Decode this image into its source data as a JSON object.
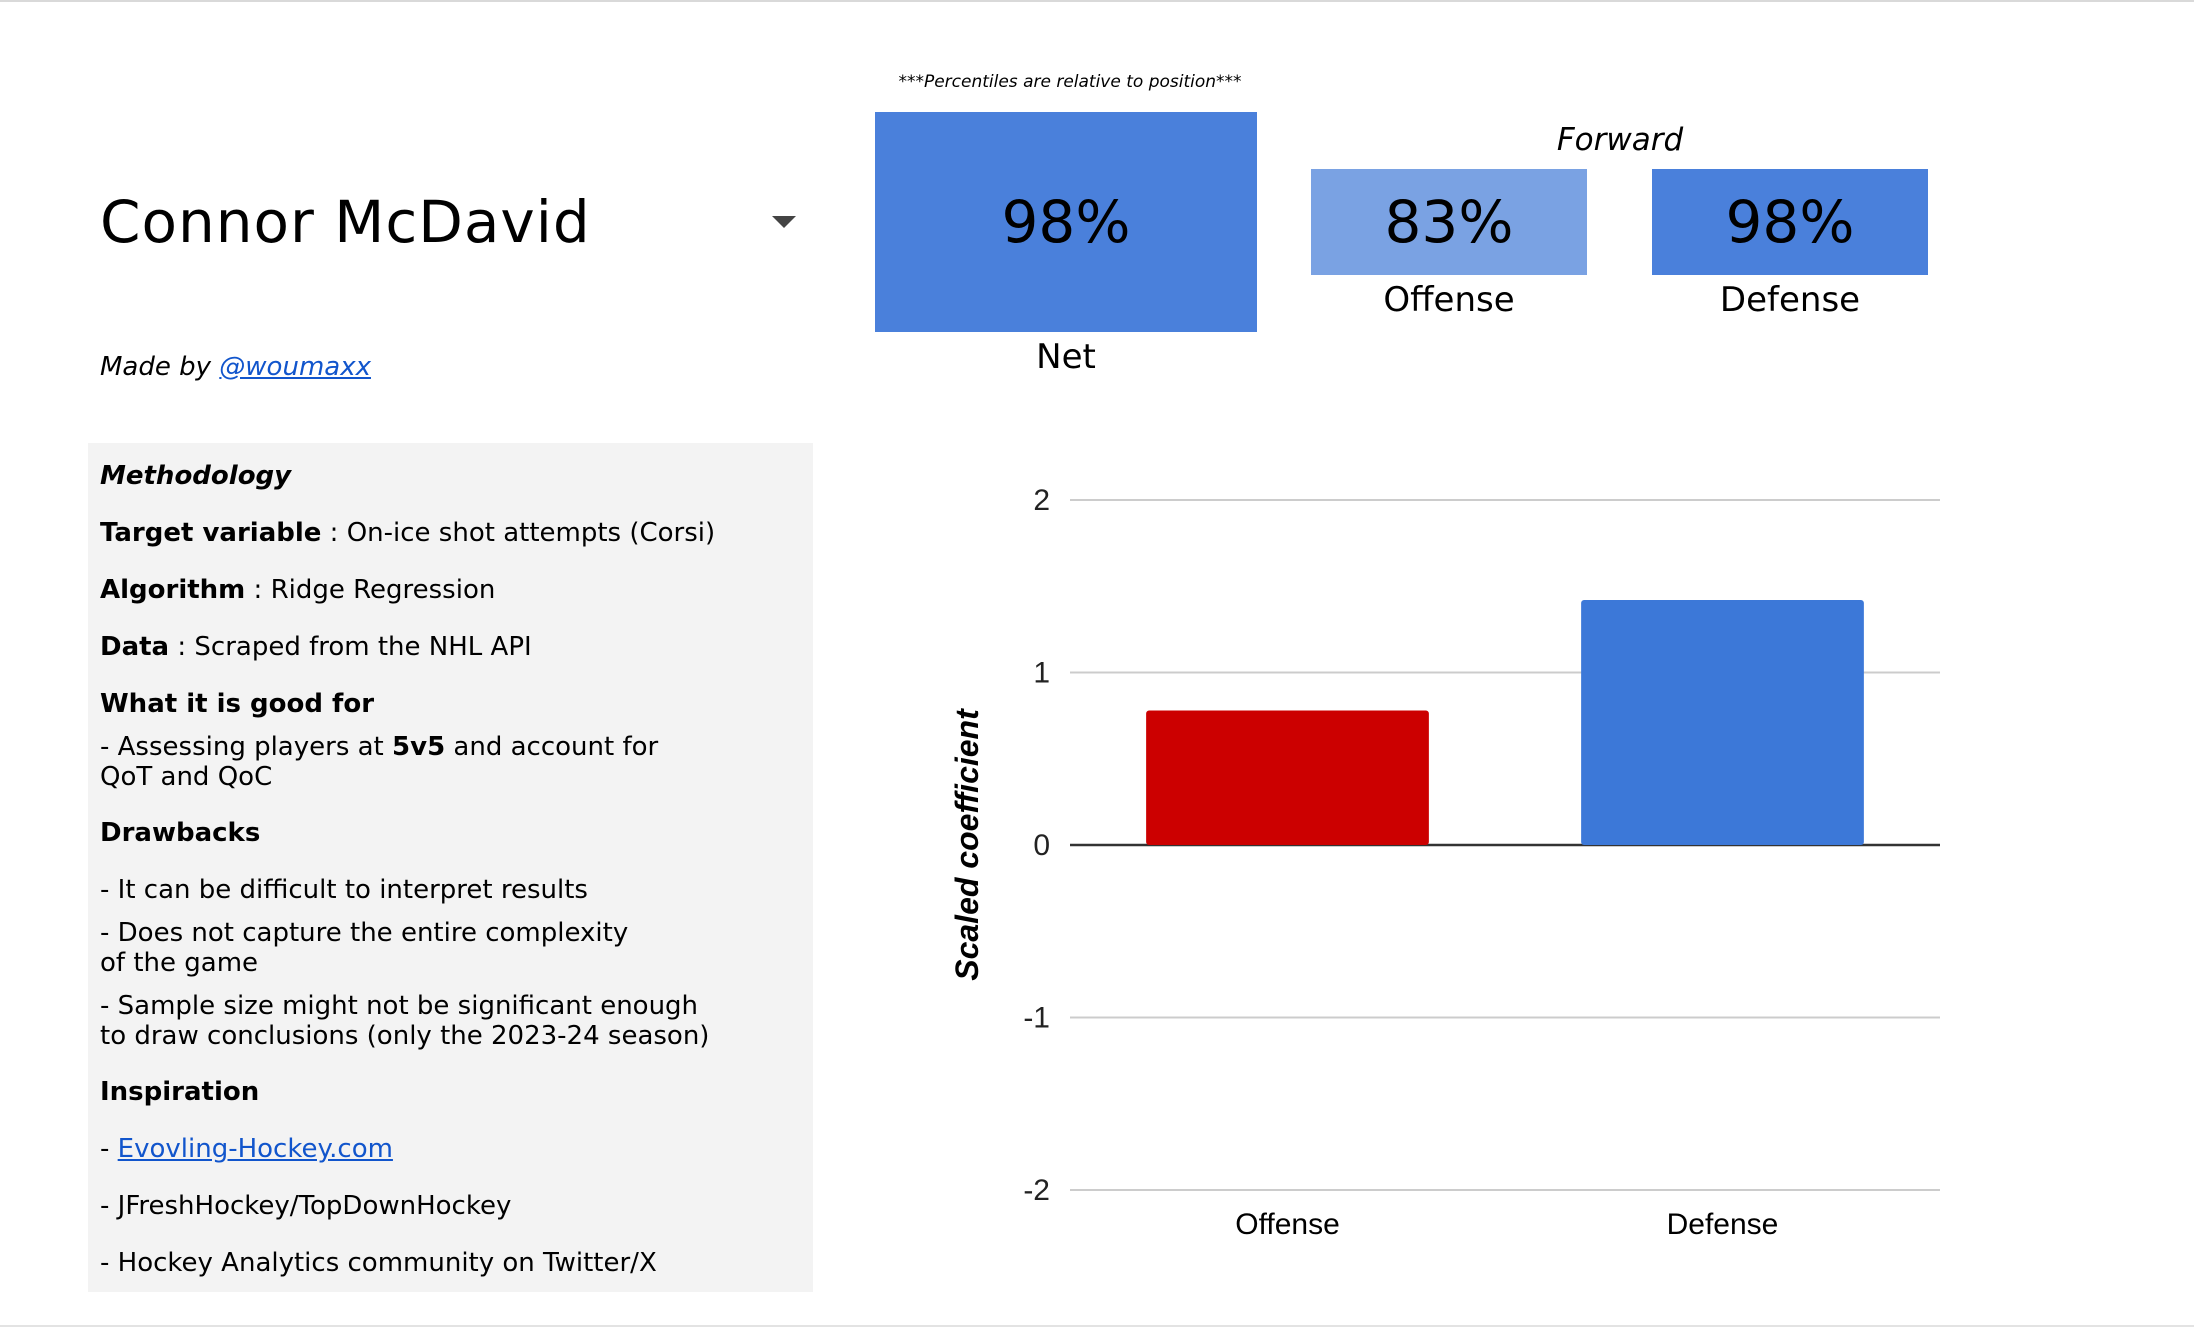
{
  "player": {
    "name": "Connor McDavid",
    "made_by_prefix": "Made by ",
    "made_by_handle": "@woumaxx"
  },
  "methodology": {
    "title": "Methodology",
    "target_label": "Target variable",
    "target_value": " : On-ice shot attempts (Corsi)",
    "algorithm_label": "Algorithm",
    "algorithm_value": " : Ridge Regression",
    "data_label": "Data",
    "data_value": " : Scraped from the NHL API",
    "good_for_title": "What it is good for",
    "good_for_line1_pre": "- Assessing players at ",
    "good_for_line1_bold": "5v5",
    "good_for_line1_post": " and account for",
    "good_for_line2": "QoT and QoC",
    "drawbacks_title": "Drawbacks",
    "drawback1": "- It can be difficult to interpret results",
    "drawback2_line1": "- Does not capture the entire complexity",
    "drawback2_line2": "of the game",
    "drawback3_line1": "- Sample size might not be significant enough",
    "drawback3_line2": "to draw conclusions (only the 2023-24 season)",
    "inspiration_title": "Inspiration",
    "insp1_prefix": "- ",
    "insp1_link": "Evovling-Hockey.com",
    "insp2": "- JFreshHockey/TopDownHockey",
    "insp3": "- Hockey Analytics community on Twitter/X"
  },
  "percentiles": {
    "note": "***Percentiles are relative to position***",
    "position": "Forward",
    "net": {
      "value": "98%",
      "label": "Net",
      "color": "#4a80db"
    },
    "offense": {
      "value": "83%",
      "label": "Offense",
      "color": "#7aa2e3"
    },
    "defense": {
      "value": "98%",
      "label": "Defense",
      "color": "#4a80db"
    }
  },
  "chart_data": {
    "type": "bar",
    "title": "",
    "xlabel": "",
    "ylabel": "Scaled coefficient",
    "categories": [
      "Offense",
      "Defense"
    ],
    "values": [
      0.78,
      1.42
    ],
    "colors": [
      "#cc0000",
      "#3c78d8"
    ],
    "ylim": [
      -2,
      2
    ],
    "yticks": [
      "2",
      "1",
      "0",
      "-1",
      "-2"
    ],
    "ytick_values": [
      2,
      1,
      0,
      -1,
      -2
    ],
    "grid": true
  }
}
